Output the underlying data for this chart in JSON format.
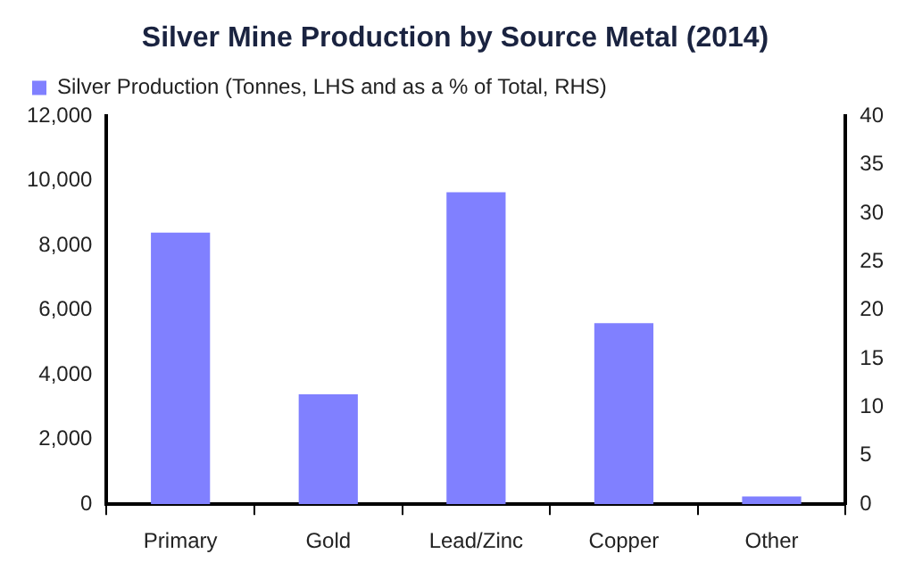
{
  "chart_data": {
    "type": "bar",
    "title": "Silver Mine Production by Source Metal (2014)",
    "categories": [
      "Primary",
      "Gold",
      "Lead/Zinc",
      "Copper",
      "Other"
    ],
    "series": [
      {
        "name": "Silver Production (Tonnes, LHS and as a % of Total, RHS)",
        "color": "#8080ff",
        "values": [
          8400,
          3400,
          9650,
          5600,
          240
        ]
      }
    ],
    "ylim": [
      0,
      12000
    ],
    "yticks": [
      0,
      {
        "value": 2000,
        "label": "2,000"
      },
      {
        "value": 4000,
        "label": "4,000"
      },
      {
        "value": 6000,
        "label": "6,000"
      },
      {
        "value": 8000,
        "label": "8,000"
      },
      {
        "value": 10000,
        "label": "10,000"
      },
      {
        "value": 12000,
        "label": "12,000"
      }
    ],
    "y2lim": [
      0,
      40
    ],
    "y2ticks": [
      0,
      5,
      10,
      15,
      20,
      25,
      30,
      35,
      40
    ],
    "grid": false,
    "legend": "top left"
  }
}
